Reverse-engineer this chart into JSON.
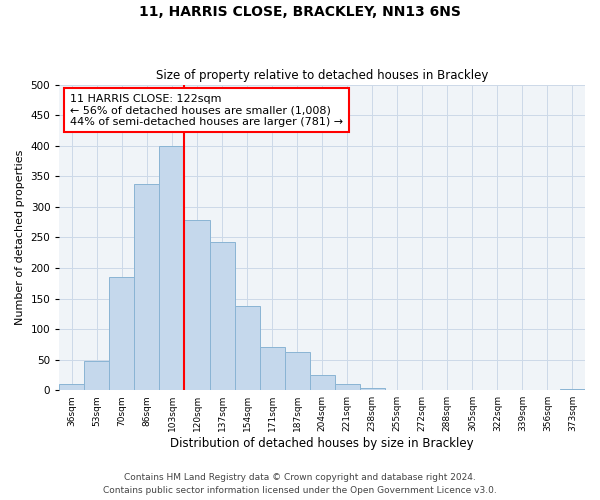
{
  "title": "11, HARRIS CLOSE, BRACKLEY, NN13 6NS",
  "subtitle": "Size of property relative to detached houses in Brackley",
  "xlabel": "Distribution of detached houses by size in Brackley",
  "ylabel": "Number of detached properties",
  "bar_labels": [
    "36sqm",
    "53sqm",
    "70sqm",
    "86sqm",
    "103sqm",
    "120sqm",
    "137sqm",
    "154sqm",
    "171sqm",
    "187sqm",
    "204sqm",
    "221sqm",
    "238sqm",
    "255sqm",
    "272sqm",
    "288sqm",
    "305sqm",
    "322sqm",
    "339sqm",
    "356sqm",
    "373sqm"
  ],
  "bar_values": [
    10,
    47,
    185,
    338,
    400,
    278,
    242,
    137,
    70,
    62,
    25,
    10,
    3,
    1,
    1,
    0,
    0,
    0,
    0,
    0,
    2
  ],
  "bar_color": "#c5d8ec",
  "bar_edge_color": "#8ab4d4",
  "property_line_index": 5,
  "property_line_color": "red",
  "annotation_text": "11 HARRIS CLOSE: 122sqm\n← 56% of detached houses are smaller (1,008)\n44% of semi-detached houses are larger (781) →",
  "annotation_box_color": "white",
  "annotation_box_edge_color": "red",
  "ylim": [
    0,
    500
  ],
  "yticks": [
    0,
    50,
    100,
    150,
    200,
    250,
    300,
    350,
    400,
    450,
    500
  ],
  "grid_color": "#ccd9e8",
  "footer_line1": "Contains HM Land Registry data © Crown copyright and database right 2024.",
  "footer_line2": "Contains public sector information licensed under the Open Government Licence v3.0.",
  "title_fontsize": 10,
  "subtitle_fontsize": 8.5,
  "annotation_fontsize": 8,
  "footer_fontsize": 6.5,
  "ylabel_fontsize": 8,
  "xlabel_fontsize": 8.5
}
